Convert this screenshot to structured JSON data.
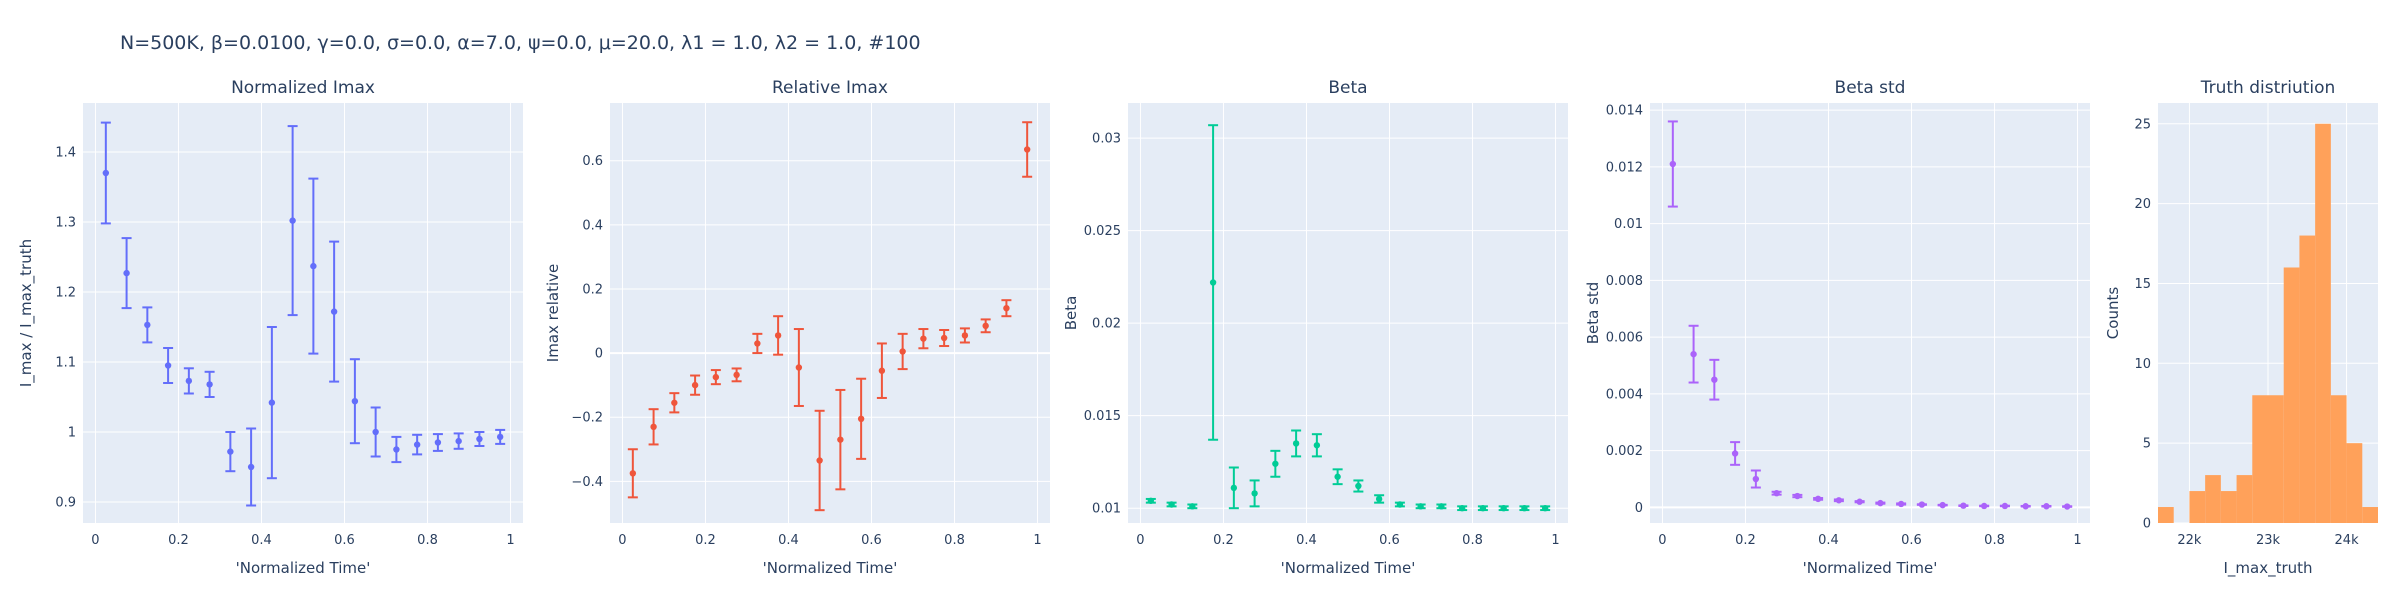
{
  "figure_title": "N=500K, β=0.0100, γ=0.0, σ=0.0,  α=7.0, ψ=0.0, μ=20.0, λ1 = 1.0, λ2 = 1.0, #100",
  "chart_data": [
    {
      "type": "scatter",
      "title": "Normalized Imax",
      "xlabel": "'Normalized Time'",
      "ylabel": "I_max / I_max_truth",
      "color": "#636efa",
      "xlim": [
        -0.03,
        1.03
      ],
      "ylim": [
        0.87,
        1.47
      ],
      "xticks": [
        0,
        0.2,
        0.4,
        0.6,
        0.8,
        1
      ],
      "xtick_labels": [
        "0",
        "0.2",
        "0.4",
        "0.6",
        "0.8",
        "1"
      ],
      "yticks": [
        0.9,
        1,
        1.1,
        1.2,
        1.3,
        1.4
      ],
      "ytick_labels": [
        "0.9",
        "1",
        "1.1",
        "1.2",
        "1.3",
        "1.4"
      ],
      "x": [
        0.025,
        0.075,
        0.125,
        0.175,
        0.225,
        0.275,
        0.325,
        0.375,
        0.425,
        0.475,
        0.525,
        0.575,
        0.625,
        0.675,
        0.725,
        0.775,
        0.825,
        0.875,
        0.925,
        0.975
      ],
      "y": [
        1.37,
        1.227,
        1.153,
        1.095,
        1.073,
        1.068,
        0.972,
        0.95,
        1.042,
        1.302,
        1.237,
        1.172,
        1.044,
        1.0,
        0.975,
        0.982,
        0.985,
        0.987,
        0.99,
        0.993
      ],
      "err": [
        0.072,
        0.05,
        0.025,
        0.025,
        0.018,
        0.018,
        0.028,
        0.055,
        0.108,
        0.135,
        0.125,
        0.1,
        0.06,
        0.035,
        0.018,
        0.014,
        0.012,
        0.011,
        0.01,
        0.01
      ]
    },
    {
      "type": "scatter",
      "title": "Relative Imax",
      "xlabel": "'Normalized Time'",
      "ylabel": "Imax relative",
      "color": "#ef553b",
      "xlim": [
        -0.03,
        1.03
      ],
      "ylim": [
        -0.53,
        0.78
      ],
      "xticks": [
        0,
        0.2,
        0.4,
        0.6,
        0.8,
        1
      ],
      "xtick_labels": [
        "0",
        "0.2",
        "0.4",
        "0.6",
        "0.8",
        "1"
      ],
      "yticks": [
        -0.4,
        -0.2,
        0,
        0.2,
        0.4,
        0.6
      ],
      "ytick_labels": [
        "−0.4",
        "−0.2",
        "0",
        "0.2",
        "0.4",
        "0.6"
      ],
      "x": [
        0.025,
        0.075,
        0.125,
        0.175,
        0.225,
        0.275,
        0.325,
        0.375,
        0.425,
        0.475,
        0.525,
        0.575,
        0.625,
        0.675,
        0.725,
        0.775,
        0.825,
        0.875,
        0.925,
        0.975
      ],
      "y": [
        -0.375,
        -0.23,
        -0.155,
        -0.1,
        -0.075,
        -0.068,
        0.03,
        0.055,
        -0.045,
        -0.335,
        -0.27,
        -0.205,
        -0.055,
        0.005,
        0.045,
        0.047,
        0.055,
        0.085,
        0.14,
        0.635
      ],
      "err": [
        0.075,
        0.055,
        0.03,
        0.03,
        0.022,
        0.02,
        0.03,
        0.06,
        0.12,
        0.155,
        0.155,
        0.125,
        0.085,
        0.055,
        0.03,
        0.025,
        0.022,
        0.02,
        0.025,
        0.085
      ]
    },
    {
      "type": "scatter",
      "title": "Beta",
      "xlabel": "'Normalized Time'",
      "ylabel": "Beta",
      "color": "#00cc96",
      "xlim": [
        -0.03,
        1.03
      ],
      "ylim": [
        0.0092,
        0.0319
      ],
      "xticks": [
        0,
        0.2,
        0.4,
        0.6,
        0.8,
        1
      ],
      "xtick_labels": [
        "0",
        "0.2",
        "0.4",
        "0.6",
        "0.8",
        "1"
      ],
      "yticks": [
        0.01,
        0.015,
        0.02,
        0.025,
        0.03
      ],
      "ytick_labels": [
        "0.01",
        "0.015",
        "0.02",
        "0.025",
        "0.03"
      ],
      "x": [
        0.025,
        0.075,
        0.125,
        0.175,
        0.225,
        0.275,
        0.325,
        0.375,
        0.425,
        0.475,
        0.525,
        0.575,
        0.625,
        0.675,
        0.725,
        0.775,
        0.825,
        0.875,
        0.925,
        0.975
      ],
      "y": [
        0.0104,
        0.0102,
        0.0101,
        0.0222,
        0.0111,
        0.0108,
        0.0124,
        0.0135,
        0.0134,
        0.0117,
        0.0112,
        0.0105,
        0.0102,
        0.0101,
        0.0101,
        0.01,
        0.01,
        0.01,
        0.01,
        0.01
      ],
      "err": [
        0.0001,
        0.0001,
        0.0001,
        0.0085,
        0.0011,
        0.0007,
        0.0007,
        0.0007,
        0.0006,
        0.0004,
        0.0003,
        0.0002,
        0.0001,
        0.0001,
        0.0001,
        0.0001,
        0.0001,
        0.0001,
        0.0001,
        0.0001
      ]
    },
    {
      "type": "scatter",
      "title": "Beta std",
      "xlabel": "'Normalized Time'",
      "ylabel": "Beta std",
      "color": "#ab63fa",
      "xlim": [
        -0.03,
        1.03
      ],
      "ylim": [
        -0.00055,
        0.01425
      ],
      "xticks": [
        0,
        0.2,
        0.4,
        0.6,
        0.8,
        1
      ],
      "xtick_labels": [
        "0",
        "0.2",
        "0.4",
        "0.6",
        "0.8",
        "1"
      ],
      "yticks": [
        0,
        0.002,
        0.004,
        0.006,
        0.008,
        0.01,
        0.012,
        0.014
      ],
      "ytick_labels": [
        "0",
        "0.002",
        "0.004",
        "0.006",
        "0.008",
        "0.01",
        "0.012",
        "0.014"
      ],
      "x": [
        0.025,
        0.075,
        0.125,
        0.175,
        0.225,
        0.275,
        0.325,
        0.375,
        0.425,
        0.475,
        0.525,
        0.575,
        0.625,
        0.675,
        0.725,
        0.775,
        0.825,
        0.875,
        0.925,
        0.975
      ],
      "y": [
        0.0121,
        0.0054,
        0.0045,
        0.0019,
        0.001,
        0.0005,
        0.0004,
        0.0003,
        0.00025,
        0.0002,
        0.00015,
        0.00012,
        0.0001,
        8e-05,
        6e-05,
        5e-05,
        5e-05,
        4e-05,
        4e-05,
        3e-05
      ],
      "err": [
        0.0015,
        0.001,
        0.0007,
        0.0004,
        0.0003,
        5e-05,
        4e-05,
        3e-05,
        3e-05,
        2e-05,
        2e-05,
        2e-05,
        1e-05,
        1e-05,
        1e-05,
        1e-05,
        1e-05,
        1e-05,
        1e-05,
        1e-05
      ]
    },
    {
      "type": "histogram",
      "title": "Truth distriution",
      "xlabel": "I_max_truth",
      "ylabel": "Counts",
      "color": "#ffa15a",
      "xlim": [
        21600,
        24400
      ],
      "ylim": [
        0,
        26.3
      ],
      "xticks": [
        22000,
        23000,
        24000
      ],
      "xtick_labels": [
        "22k",
        "23k",
        "24k"
      ],
      "yticks": [
        0,
        5,
        10,
        15,
        20,
        25
      ],
      "ytick_labels": [
        "0",
        "5",
        "10",
        "15",
        "20",
        "25"
      ],
      "bin_edges": [
        21600,
        21800,
        22000,
        22200,
        22400,
        22600,
        22800,
        23000,
        23200,
        23400,
        23600,
        23800,
        24000,
        24200,
        24400
      ],
      "counts": [
        1,
        0,
        2,
        3,
        2,
        3,
        8,
        8,
        16,
        18,
        25,
        8,
        5,
        1
      ]
    }
  ]
}
